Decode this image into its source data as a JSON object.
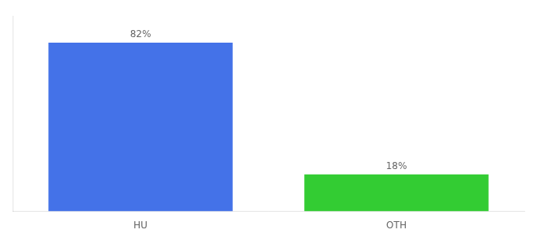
{
  "chart_data": {
    "type": "bar",
    "categories": [
      "HU",
      "OTH"
    ],
    "values": [
      82,
      18
    ],
    "value_labels": [
      "82%",
      "18%"
    ],
    "colors": [
      "#4472e8",
      "#33cc33"
    ],
    "ylim": [
      0,
      95
    ],
    "data_labels": true,
    "tick_labels": "x",
    "grid": false
  }
}
